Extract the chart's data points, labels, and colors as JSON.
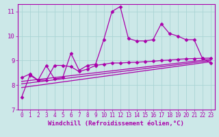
{
  "xlabel": "Windchill (Refroidissement éolien,°C)",
  "bg_color": "#cce8e8",
  "grid_color": "#aad4d4",
  "line_color": "#aa00aa",
  "xlim": [
    -0.5,
    23.5
  ],
  "ylim": [
    7,
    11.3
  ],
  "yticks": [
    7,
    8,
    9,
    10,
    11
  ],
  "xticks": [
    0,
    1,
    2,
    3,
    4,
    5,
    6,
    7,
    8,
    9,
    10,
    11,
    12,
    13,
    14,
    15,
    16,
    17,
    18,
    19,
    20,
    21,
    22,
    23
  ],
  "series1_x": [
    0,
    1,
    2,
    3,
    4,
    5,
    6,
    7,
    8,
    9,
    10,
    11,
    12,
    13,
    14,
    15,
    16,
    17,
    18,
    19,
    20,
    21,
    22,
    23
  ],
  "series1_y": [
    7.5,
    8.4,
    8.2,
    8.8,
    8.25,
    8.3,
    9.3,
    8.6,
    8.8,
    8.85,
    9.85,
    11.0,
    11.2,
    9.9,
    9.8,
    9.8,
    9.85,
    10.5,
    10.1,
    10.0,
    9.85,
    9.85,
    9.1,
    8.9
  ],
  "series2_x": [
    0,
    1,
    2,
    3,
    4,
    5,
    6,
    7,
    8,
    9,
    10,
    11,
    12,
    13,
    14,
    15,
    16,
    17,
    18,
    19,
    20,
    21,
    22,
    23
  ],
  "series2_y": [
    8.3,
    8.45,
    8.2,
    8.2,
    8.8,
    8.8,
    8.75,
    8.55,
    8.65,
    8.8,
    8.85,
    8.9,
    8.9,
    8.92,
    8.93,
    8.95,
    8.97,
    9.0,
    9.02,
    9.05,
    9.07,
    9.08,
    9.09,
    9.1
  ],
  "series3_x": [
    0,
    23
  ],
  "series3_y": [
    8.15,
    9.05
  ],
  "series4_x": [
    0,
    23
  ],
  "series4_y": [
    8.05,
    9.0
  ],
  "series5_x": [
    0,
    23
  ],
  "series5_y": [
    7.9,
    8.95
  ],
  "marker": "D",
  "markersize": 2.5,
  "linewidth": 0.9,
  "tick_fontsize": 5.5,
  "xlabel_fontsize": 6.5
}
